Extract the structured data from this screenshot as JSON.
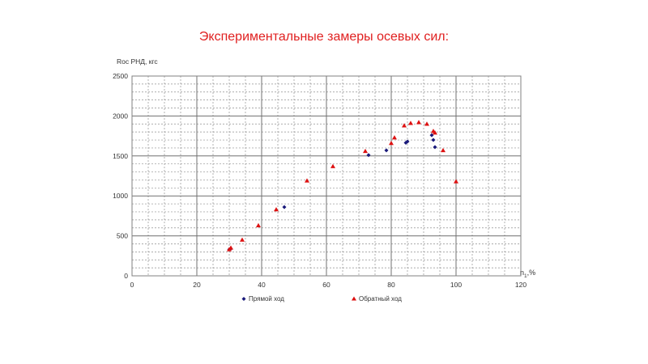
{
  "slide": {
    "title": "Экспериментальные замеры осевых сил:"
  },
  "chart_data": {
    "type": "scatter",
    "title": "",
    "ylabel": "Roc РНД, кгс",
    "xlabel_main": "n",
    "xlabel_sub": "1",
    "xlabel_suffix": ",%",
    "xlim": [
      0,
      120
    ],
    "ylim": [
      0,
      2500
    ],
    "x_ticks": [
      0,
      20,
      40,
      60,
      80,
      100,
      120
    ],
    "y_ticks": [
      0,
      500,
      1000,
      1500,
      2000,
      2500
    ],
    "x_minor_step": 5,
    "y_minor_step": 100,
    "grid": true,
    "legend_position": "bottom",
    "series": [
      {
        "name": "Прямой ход",
        "marker": "diamond",
        "color": "#1a1a7a",
        "points": [
          {
            "x": 30,
            "y": 330
          },
          {
            "x": 30.5,
            "y": 340
          },
          {
            "x": 47,
            "y": 860
          },
          {
            "x": 73,
            "y": 1510
          },
          {
            "x": 78.5,
            "y": 1570
          },
          {
            "x": 84.5,
            "y": 1665
          },
          {
            "x": 85,
            "y": 1680
          },
          {
            "x": 92.5,
            "y": 1760
          },
          {
            "x": 93,
            "y": 1700
          },
          {
            "x": 93.5,
            "y": 1610
          }
        ]
      },
      {
        "name": "Обратный ход",
        "marker": "triangle",
        "color": "#dd1111",
        "points": [
          {
            "x": 30,
            "y": 330
          },
          {
            "x": 30.5,
            "y": 350
          },
          {
            "x": 34,
            "y": 450
          },
          {
            "x": 39,
            "y": 630
          },
          {
            "x": 44.5,
            "y": 830
          },
          {
            "x": 54,
            "y": 1190
          },
          {
            "x": 62,
            "y": 1370
          },
          {
            "x": 72,
            "y": 1560
          },
          {
            "x": 80,
            "y": 1660
          },
          {
            "x": 81,
            "y": 1730
          },
          {
            "x": 84,
            "y": 1880
          },
          {
            "x": 86,
            "y": 1910
          },
          {
            "x": 88.5,
            "y": 1920
          },
          {
            "x": 91,
            "y": 1900
          },
          {
            "x": 93,
            "y": 1810
          },
          {
            "x": 93.5,
            "y": 1790
          },
          {
            "x": 96,
            "y": 1570
          },
          {
            "x": 100,
            "y": 1180
          }
        ]
      }
    ]
  }
}
